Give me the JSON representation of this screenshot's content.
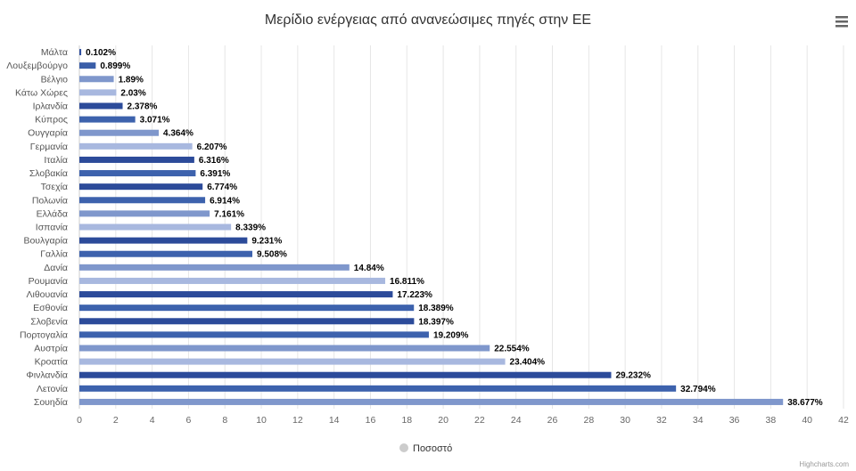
{
  "chart_data": {
    "type": "bar",
    "orientation": "horizontal",
    "title": "Μερίδιο ενέργειας από ανανεώσιμες πηγές στην ΕΕ",
    "categories": [
      "Μάλτα",
      "Λουξεμβούργο",
      "Βέλγιο",
      "Κάτω Χώρες",
      "Ιρλανδία",
      "Κύπρος",
      "Ουγγαρία",
      "Γερμανία",
      "Ιταλία",
      "Σλοβακία",
      "Τσεχία",
      "Πολωνία",
      "Ελλάδα",
      "Ισπανία",
      "Βουλγαρία",
      "Γαλλία",
      "Δανία",
      "Ρουμανία",
      "Λιθουανία",
      "Εσθονία",
      "Σλοβενία",
      "Πορτογαλία",
      "Αυστρία",
      "Κροατία",
      "Φινλανδία",
      "Λετονία",
      "Σουηδία"
    ],
    "series": [
      {
        "name": "Ποσοστό",
        "values": [
          0.102,
          0.899,
          1.89,
          2.03,
          2.378,
          3.071,
          4.364,
          6.207,
          6.316,
          6.391,
          6.774,
          6.914,
          7.161,
          8.339,
          9.231,
          9.508,
          14.84,
          16.811,
          17.223,
          18.389,
          18.397,
          19.209,
          22.554,
          23.404,
          29.232,
          32.794,
          38.677
        ],
        "data_labels": [
          "0.102%",
          "0.899%",
          "1.89%",
          "2.03%",
          "2.378%",
          "3.071%",
          "4.364%",
          "6.207%",
          "6.316%",
          "6.391%",
          "6.774%",
          "6.914%",
          "7.161%",
          "8.339%",
          "9.231%",
          "9.508%",
          "14.84%",
          "16.811%",
          "17.223%",
          "18.389%",
          "18.397%",
          "19.209%",
          "22.554%",
          "23.404%",
          "29.232%",
          "32.794%",
          "38.677%"
        ],
        "colors": [
          "#2f4f9f",
          "#3a5ea8",
          "#7f97cc",
          "#a8b8df",
          "#2c4b9a",
          "#3d62ad",
          "#7f97cc",
          "#a8b8df",
          "#2c4b9a",
          "#3d62ad",
          "#2c4b9a",
          "#3d62ad",
          "#7f97cc",
          "#a8b8df",
          "#2c4b9a",
          "#3d62ad",
          "#7f97cc",
          "#a8b8df",
          "#2c4b9a",
          "#3d62ad",
          "#2c4b9a",
          "#3d62ad",
          "#7f97cc",
          "#a8b8df",
          "#2c4b9a",
          "#3d62ad",
          "#7f97cc"
        ]
      }
    ],
    "xlim": [
      0,
      42
    ],
    "x_ticks": [
      0,
      2,
      4,
      6,
      8,
      10,
      12,
      14,
      16,
      18,
      20,
      22,
      24,
      26,
      28,
      30,
      32,
      34,
      36,
      38,
      40,
      42
    ],
    "grid": true,
    "legend_position": "bottom-center",
    "legend_marker_color": "#cccccc"
  },
  "credits": "Highcharts.com",
  "menu_icon": "hamburger-menu-icon"
}
